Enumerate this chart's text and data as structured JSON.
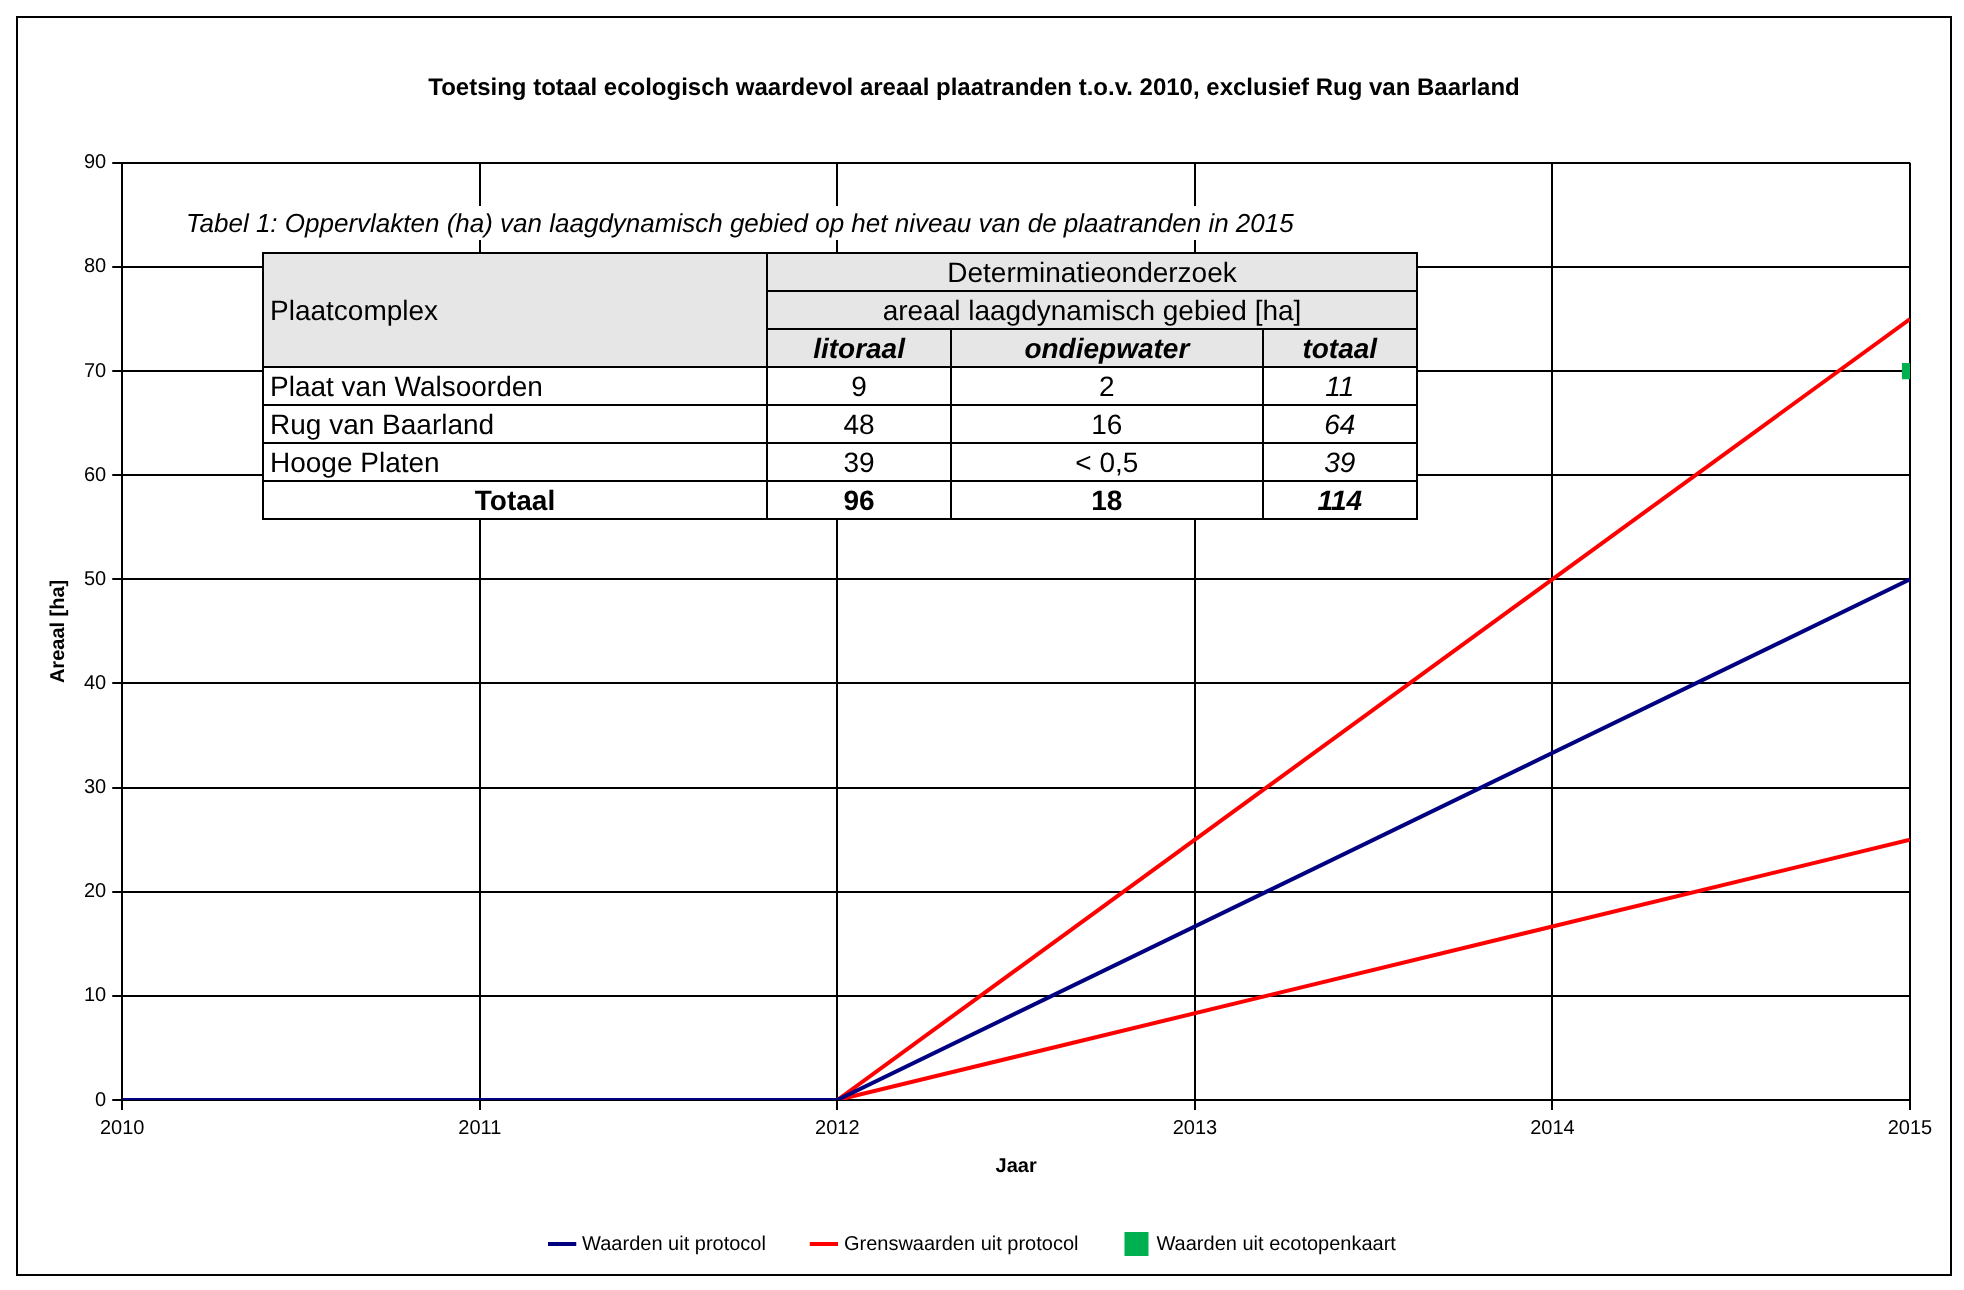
{
  "chart_data": {
    "type": "line",
    "title": "Toetsing totaal ecologisch waardevol areaal plaatranden t.o.v. 2010, exclusief Rug van Baarland",
    "xlabel": "Jaar",
    "ylabel": "Areaal [ha]",
    "xlim": [
      2010,
      2015
    ],
    "xticks": [
      2010,
      2011,
      2012,
      2013,
      2014,
      2015
    ],
    "ylim": [
      0,
      90
    ],
    "yticks": [
      0,
      10,
      20,
      30,
      40,
      50,
      60,
      70,
      80,
      90
    ],
    "grid": true,
    "legend": "bottom",
    "marker": "none",
    "line_style": "solid",
    "series": [
      {
        "name": "Waarden uit protocol",
        "color": "#000080",
        "x": [
          2010,
          2012,
          2015
        ],
        "values": [
          0,
          0,
          50
        ]
      },
      {
        "name": "Grenswaarden uit protocol",
        "color": "#ff0000",
        "x": [
          2012,
          2015
        ],
        "values": [
          0,
          75
        ]
      },
      {
        "color": "#ff0000",
        "x": [
          2012,
          2015
        ],
        "values": [
          0,
          25
        ]
      },
      {
        "name": "Waarden uit ecotopenkaart",
        "type": "scatter",
        "marker": "square",
        "color": "#00b050",
        "x": [
          2015
        ],
        "values": [
          70
        ]
      }
    ],
    "annotations": [
      "Tabel 1: Oppervlakten (ha) van laagdynamisch gebied op het niveau van de plaatranden in 2015",
      "Plaatcomplex",
      "Determinatieonderzoek",
      "areaal laagdynamisch gebied [ha]",
      "litoraal",
      "ondiepwater",
      "totaal",
      "Plaat van Walsoorden",
      "9",
      "2",
      "11",
      "Rug van Baarland",
      "48",
      "16",
      "64",
      "Hooge Platen",
      "39",
      "< 0,5",
      "39",
      "Totaal",
      "96",
      "18",
      "114"
    ]
  }
}
